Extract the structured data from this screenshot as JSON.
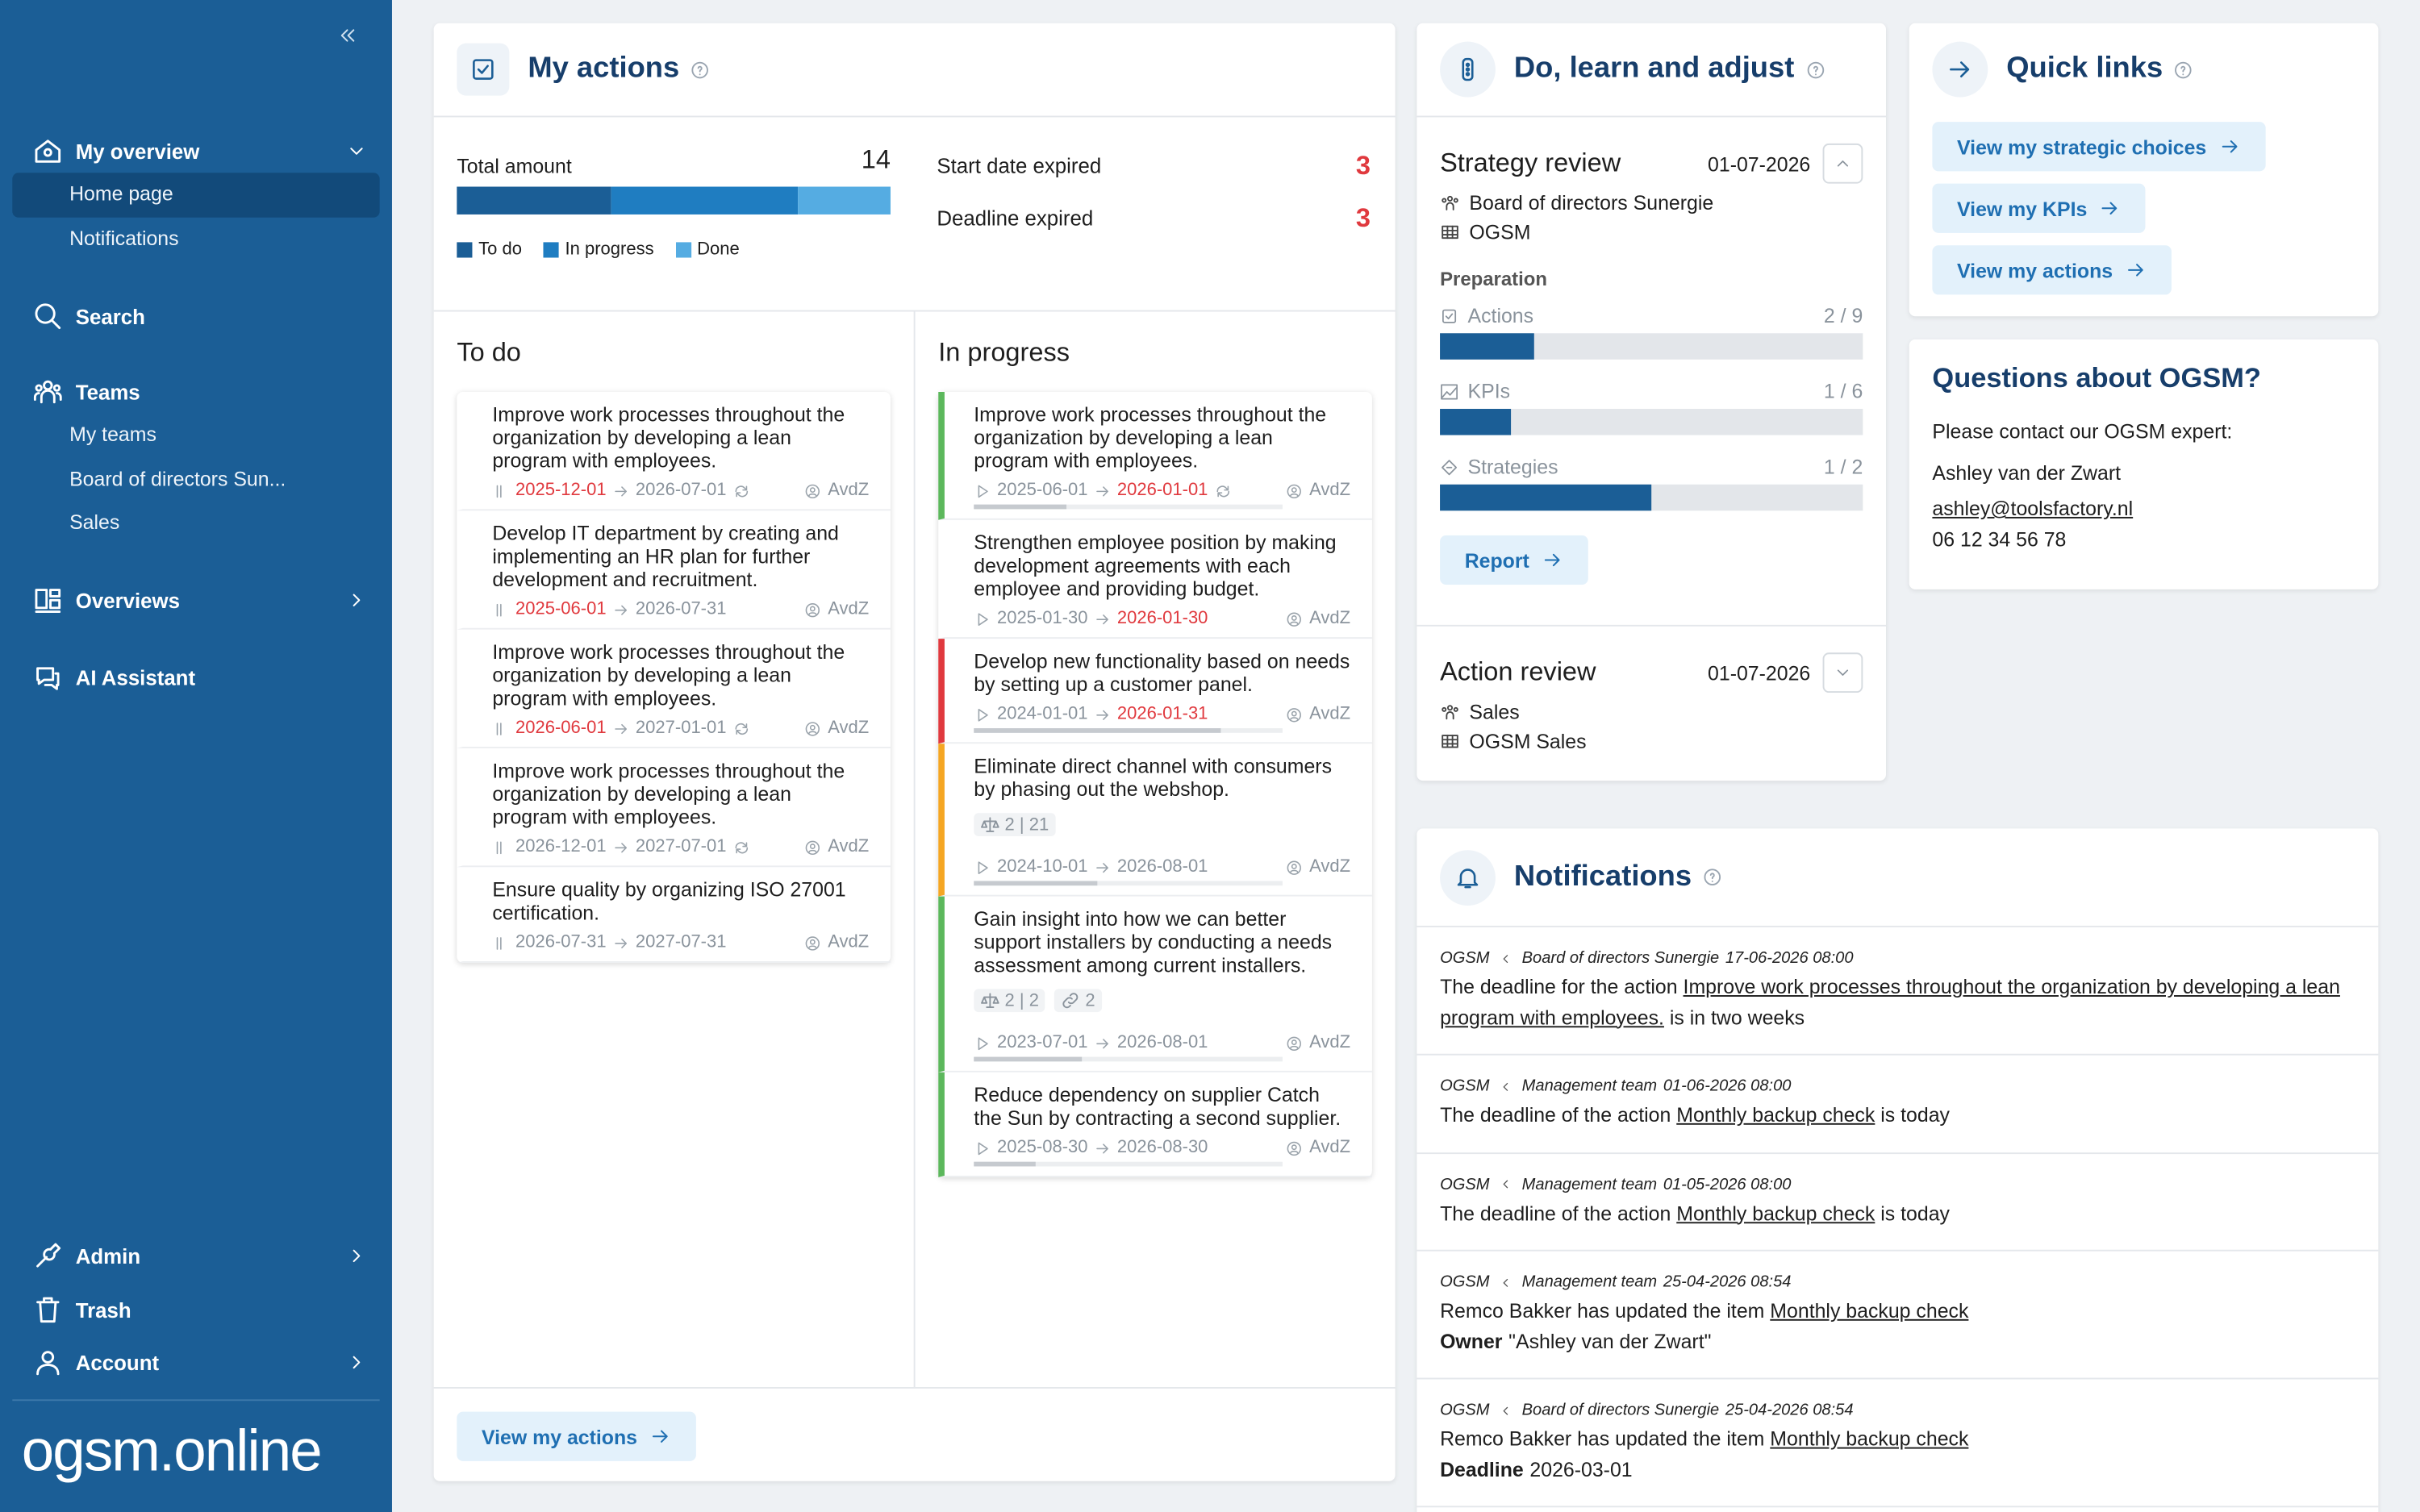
{
  "sidebar": {
    "nav": [
      {
        "label": "My overview",
        "chevron": "down",
        "children": [
          {
            "label": "Home page",
            "active": true
          },
          {
            "label": "Notifications"
          }
        ]
      },
      {
        "label": "Search"
      },
      {
        "label": "Teams",
        "children": [
          {
            "label": "My teams"
          },
          {
            "label": "Board of directors Sun..."
          },
          {
            "label": "Sales"
          }
        ]
      },
      {
        "label": "Overviews",
        "chevron": "right"
      },
      {
        "label": "AI Assistant"
      }
    ],
    "bottom": [
      {
        "label": "Admin",
        "chevron": "right"
      },
      {
        "label": "Trash"
      },
      {
        "label": "Account",
        "chevron": "right"
      }
    ],
    "logo": "ogsm.online"
  },
  "my_actions": {
    "title": "My actions",
    "total_label": "Total amount",
    "total": 14,
    "segments": [
      {
        "name": "To do",
        "value": 5,
        "color": "#1b5e96"
      },
      {
        "name": "In progress",
        "value": 6,
        "color": "#1f7dc1"
      },
      {
        "name": "Done",
        "value": 3,
        "color": "#55ace2"
      }
    ],
    "expired": [
      {
        "label": "Start date expired",
        "value": 3
      },
      {
        "label": "Deadline expired",
        "value": 3
      }
    ],
    "columns": [
      {
        "title": "To do",
        "cards": [
          {
            "title": "Improve work processes throughout the organization by developing a lean program with employees.",
            "start": "2025-12-01",
            "end": "2026-07-01",
            "expired": "start",
            "recurring": true,
            "owner": "AvdZ"
          },
          {
            "title": "Develop IT department by creating and implementing an HR plan for further development and recruitment.",
            "start": "2025-06-01",
            "end": "2026-07-31",
            "expired": "start",
            "owner": "AvdZ"
          },
          {
            "title": "Improve work processes throughout the organization by developing a lean program with employees.",
            "start": "2026-06-01",
            "end": "2027-01-01",
            "expired": "start",
            "recurring": true,
            "owner": "AvdZ"
          },
          {
            "title": "Improve work processes throughout the organization by developing a lean program with employees.",
            "start": "2026-12-01",
            "end": "2027-07-01",
            "recurring": true,
            "owner": "AvdZ"
          },
          {
            "title": "Ensure quality by organizing ISO 27001 certification.",
            "start": "2026-07-31",
            "end": "2027-07-31",
            "owner": "AvdZ"
          }
        ]
      },
      {
        "title": "In progress",
        "cards": [
          {
            "title": "Improve work processes throughout the organization by developing a lean program with employees.",
            "start": "2025-06-01",
            "end": "2026-01-01",
            "expired": "end",
            "recurring": true,
            "owner": "AvdZ",
            "border": "#5cb85c",
            "progress": 30
          },
          {
            "title": "Strengthen employee position by making development agreements with each employee and providing budget.",
            "start": "2025-01-30",
            "end": "2026-01-30",
            "expired": "end",
            "owner": "AvdZ"
          },
          {
            "title": "Develop new functionality based on needs by setting up a customer panel.",
            "start": "2024-01-01",
            "end": "2026-01-31",
            "expired": "end",
            "owner": "AvdZ",
            "border": "#e0393e",
            "progress": 80
          },
          {
            "title": "Eliminate direct channel with consumers by phasing out the webshop.",
            "badges": [
              {
                "text": "2 | 21"
              }
            ],
            "start": "2024-10-01",
            "end": "2026-08-01",
            "owner": "AvdZ",
            "border": "#f5a623",
            "progress": 40
          },
          {
            "title": "Gain insight into how we can better support installers by conducting a needs assessment among current installers.",
            "badges": [
              {
                "text": "2 | 2"
              },
              {
                "text": "2"
              }
            ],
            "start": "2023-07-01",
            "end": "2026-08-01",
            "owner": "AvdZ",
            "border": "#5cb85c",
            "progress": 35
          },
          {
            "title": "Reduce dependency on supplier Catch the Sun by contracting a second supplier.",
            "start": "2025-08-30",
            "end": "2026-08-30",
            "owner": "AvdZ",
            "border": "#5cb85c",
            "progress": 20
          }
        ]
      }
    ],
    "button": "View my actions"
  },
  "do_learn_adjust": {
    "title": "Do, learn and adjust",
    "reviews": [
      {
        "title": "Strategy review",
        "date": "01-07-2026",
        "team": "Board of directors Sunergie",
        "ogsm": "OGSM",
        "expanded": true,
        "section": "Preparation",
        "items": [
          {
            "label": "Actions",
            "value": 2,
            "max": 9,
            "value_label": "2 / 9"
          },
          {
            "label": "KPIs",
            "value": 1,
            "max": 6,
            "value_label": "1 / 6"
          },
          {
            "label": "Strategies",
            "value": 1,
            "max": 2,
            "value_label": "1 / 2"
          }
        ],
        "button": "Report"
      },
      {
        "title": "Action review",
        "date": "01-07-2026",
        "team": "Sales",
        "ogsm": "OGSM Sales",
        "expanded": false
      }
    ]
  },
  "quick_links": {
    "title": "Quick links",
    "links": [
      "View my strategic choices",
      "View my KPIs",
      "View my actions"
    ]
  },
  "questions": {
    "title": "Questions about OGSM?",
    "lines": [
      "Please contact our OGSM expert:",
      "Ashley van der Zwart"
    ],
    "email": "ashley@toolsfactory.nl",
    "phone": "06 12 34 56 78"
  },
  "notifications": {
    "title": "Notifications",
    "items": [
      {
        "source": "OGSM",
        "context": "Board of directors Sunergie",
        "time": "17-06-2026 08:00",
        "before": "The deadline for the action ",
        "link": "Improve work processes throughout the organization by developing a lean program with employees.",
        "after": " is in two weeks"
      },
      {
        "source": "OGSM",
        "context": "Management team",
        "time": "01-06-2026 08:00",
        "before": "The deadline of the action ",
        "link": "Monthly backup check",
        "after": " is today"
      },
      {
        "source": "OGSM",
        "context": "Management team",
        "time": "01-05-2026 08:00",
        "before": "The deadline of the action ",
        "link": "Monthly backup check",
        "after": " is today"
      },
      {
        "source": "OGSM",
        "context": "Management team",
        "time": "25-04-2026 08:54",
        "before": "Remco Bakker has updated the item ",
        "link": "Monthly backup check",
        "field": "Owner",
        "field_value": "\"Ashley van der Zwart\""
      },
      {
        "source": "OGSM",
        "context": "Board of directors Sunergie",
        "time": "25-04-2026 08:54",
        "before": "Remco Bakker has updated the item ",
        "link": "Monthly backup check",
        "field": "Deadline",
        "field_value": "2026-03-01"
      }
    ]
  }
}
